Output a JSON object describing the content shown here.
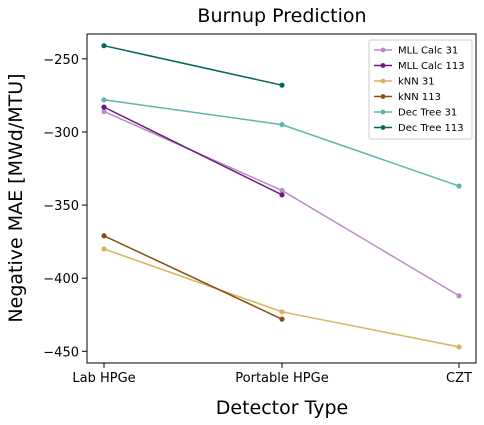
{
  "chart_data": {
    "type": "line",
    "title": "Burnup Prediction",
    "xlabel": "Detector Type",
    "ylabel": "Negative MAE [MWd/MTU]",
    "categories": [
      "Lab HPGe",
      "Portable HPGe",
      "CZT"
    ],
    "ylim": [
      -458,
      -233
    ],
    "yticks": [
      -250,
      -300,
      -350,
      -400,
      -450
    ],
    "grid": false,
    "legend_position": "top-right",
    "series": [
      {
        "name": "MLL Calc 31",
        "color": "#b88bc7",
        "values": [
          -286,
          -340,
          -412
        ]
      },
      {
        "name": "MLL Calc 113",
        "color": "#6a1b7a",
        "values": [
          -283,
          -343,
          null
        ]
      },
      {
        "name": "kNN 31",
        "color": "#d9b160",
        "values": [
          -380,
          -423,
          -447
        ]
      },
      {
        "name": "kNN 113",
        "color": "#86500f",
        "values": [
          -371,
          -428,
          null
        ]
      },
      {
        "name": "Dec Tree 31",
        "color": "#5cb6ac",
        "values": [
          -278,
          -295,
          -337
        ]
      },
      {
        "name": "Dec Tree 113",
        "color": "#04675b",
        "values": [
          -241,
          -268,
          null
        ]
      }
    ]
  }
}
